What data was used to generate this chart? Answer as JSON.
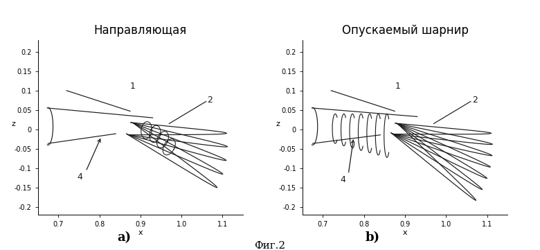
{
  "title_left": "Направляющая",
  "title_right": "Опускаемый шарнир",
  "label_a": "a)",
  "label_b": "b)",
  "fig_caption": "Фиг.2",
  "xlabel": "x",
  "ylabel": "z",
  "xlim": [
    0.65,
    1.15
  ],
  "ylim": [
    -0.22,
    0.23
  ],
  "xticks": [
    0.7,
    0.8,
    0.9,
    1.1
  ],
  "yticks": [
    -0.2,
    -0.15,
    -0.1,
    -0.05,
    0.0,
    0.05,
    0.1,
    0.15,
    0.2
  ],
  "bg_color": "#ffffff",
  "line_color": "#1a1a1a",
  "title_fontsize": 12,
  "label_fontsize": 13,
  "caption_fontsize": 11,
  "tick_fontsize": 7,
  "axis_label_fontsize": 8,
  "lw": 0.85
}
